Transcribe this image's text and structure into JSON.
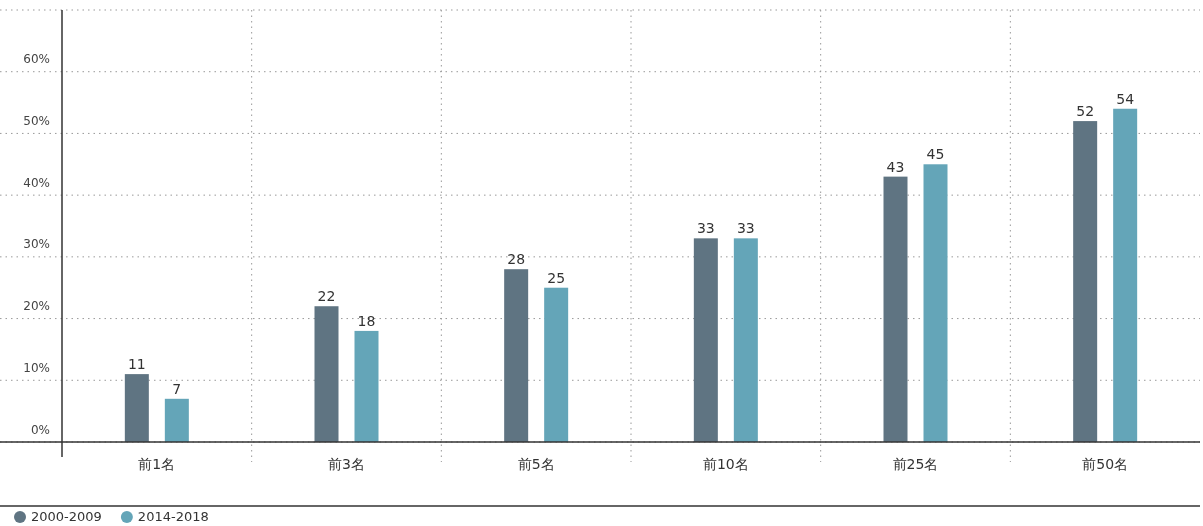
{
  "chart_data": {
    "type": "bar",
    "categories": [
      "前1名",
      "前3名",
      "前5名",
      "前10名",
      "前25名",
      "前50名"
    ],
    "series": [
      {
        "name": "2000-2009",
        "color": "#5f7482",
        "values": [
          11,
          22,
          28,
          33,
          43,
          52
        ]
      },
      {
        "name": "2014-2018",
        "color": "#64a5b8",
        "values": [
          7,
          18,
          25,
          33,
          45,
          54
        ]
      }
    ],
    "ylim": [
      0,
      70
    ],
    "yticks": [
      {
        "value": 0,
        "label": "0%"
      },
      {
        "value": 10,
        "label": "10%"
      },
      {
        "value": 20,
        "label": "20%"
      },
      {
        "value": 30,
        "label": "30%"
      },
      {
        "value": 40,
        "label": "40%"
      },
      {
        "value": 50,
        "label": "50%"
      },
      {
        "value": 60,
        "label": "60%"
      },
      {
        "value": 70,
        "label": null
      }
    ],
    "data_labels": true,
    "grid": true,
    "legend": "bottom left"
  }
}
